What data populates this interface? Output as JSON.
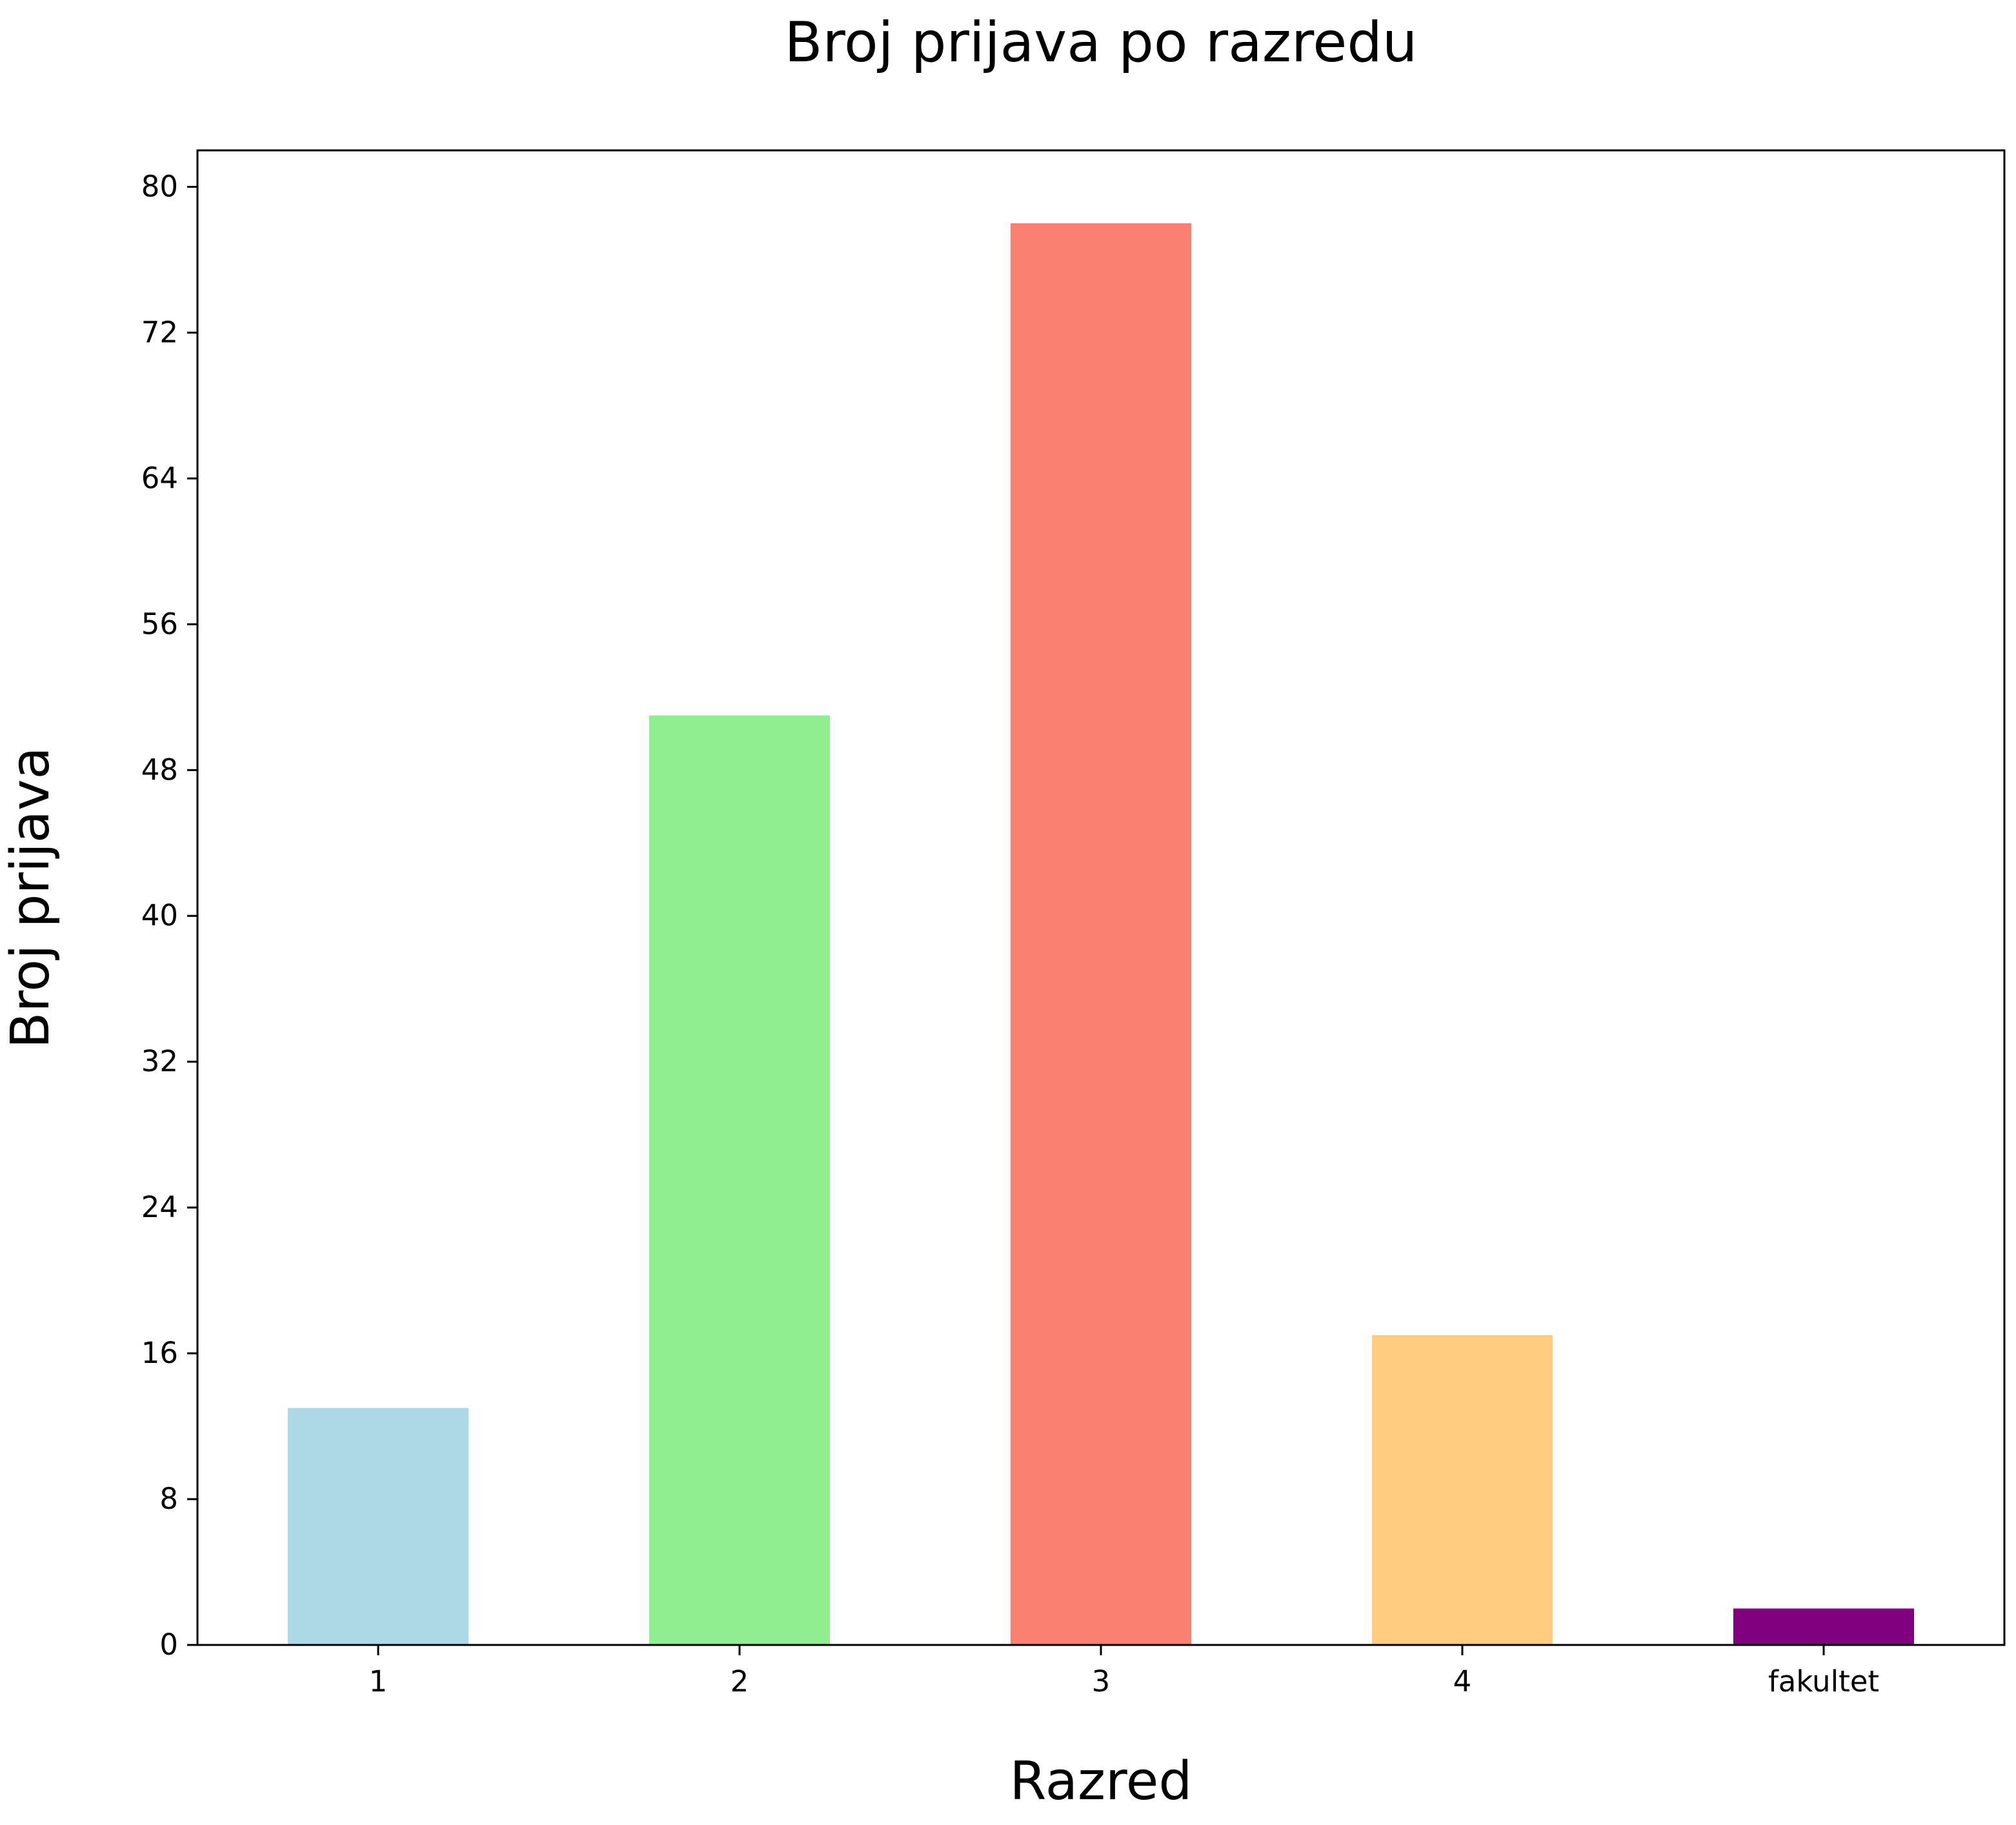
{
  "chart_data": {
    "type": "bar",
    "title": "Broj prijava po razredu",
    "xlabel": "Razred",
    "ylabel": "Broj prijava",
    "categories": [
      "1",
      "2",
      "3",
      "4",
      "fakultet"
    ],
    "values": [
      13,
      51,
      78,
      17,
      2
    ],
    "colors": [
      "#add8e6",
      "#90ee90",
      "#fa8072",
      "#ffcc80",
      "#800080"
    ],
    "ylim": [
      0,
      82
    ],
    "yticks": [
      0,
      8,
      16,
      24,
      32,
      40,
      48,
      56,
      64,
      72,
      80
    ],
    "ytick_labels": [
      "0",
      "8",
      "16",
      "24",
      "32",
      "40",
      "48",
      "56",
      "64",
      "72",
      "80"
    ],
    "grid": false,
    "legend": false
  }
}
